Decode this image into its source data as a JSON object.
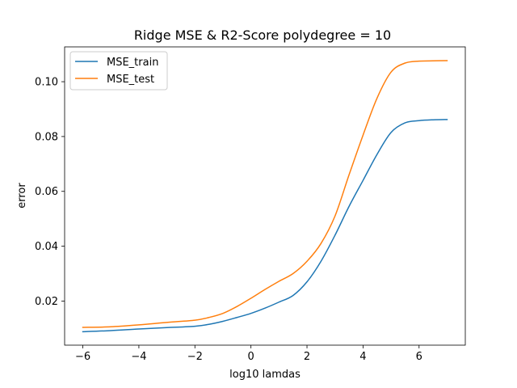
{
  "chart_data": {
    "type": "line",
    "title": "Ridge MSE & R2-Score polydegree = 10",
    "xlabel": "log10 lamdas",
    "ylabel": "error",
    "xlim": [
      -6.65,
      7.65
    ],
    "ylim": [
      0.0039,
      0.1127
    ],
    "xticks": [
      -6,
      -4,
      -2,
      0,
      2,
      4,
      6
    ],
    "xtick_labels": [
      "−6",
      "−4",
      "−2",
      "0",
      "2",
      "4",
      "6"
    ],
    "yticks": [
      0.02,
      0.04,
      0.06,
      0.08,
      0.1
    ],
    "ytick_labels": [
      "0.02",
      "0.04",
      "0.06",
      "0.08",
      "0.10"
    ],
    "grid": false,
    "legend_position": "upper-left",
    "series": [
      {
        "name": "MSE_train",
        "color": "#1f77b4",
        "x": [
          -6,
          -5,
          -4,
          -3,
          -2,
          -1.5,
          -1,
          -0.5,
          0,
          0.5,
          1,
          1.5,
          2,
          2.5,
          3,
          3.5,
          4,
          4.5,
          5,
          5.5,
          6,
          6.5,
          7
        ],
        "y": [
          0.0088,
          0.0092,
          0.0098,
          0.0103,
          0.0108,
          0.0115,
          0.0126,
          0.014,
          0.0155,
          0.0174,
          0.0196,
          0.022,
          0.027,
          0.0345,
          0.044,
          0.0545,
          0.064,
          0.0735,
          0.0815,
          0.085,
          0.0858,
          0.0861,
          0.0862
        ]
      },
      {
        "name": "MSE_test",
        "color": "#ff7f0e",
        "x": [
          -6,
          -5,
          -4,
          -3,
          -2,
          -1.5,
          -1,
          -0.5,
          0,
          0.5,
          1,
          1.5,
          2,
          2.5,
          3,
          3.5,
          4,
          4.5,
          5,
          5.5,
          6,
          6.5,
          7
        ],
        "y": [
          0.0104,
          0.0106,
          0.0113,
          0.0122,
          0.013,
          0.014,
          0.0155,
          0.018,
          0.021,
          0.0242,
          0.0272,
          0.03,
          0.0345,
          0.041,
          0.051,
          0.066,
          0.0805,
          0.094,
          0.1035,
          0.1068,
          0.1075,
          0.1076,
          0.1077
        ]
      }
    ]
  }
}
